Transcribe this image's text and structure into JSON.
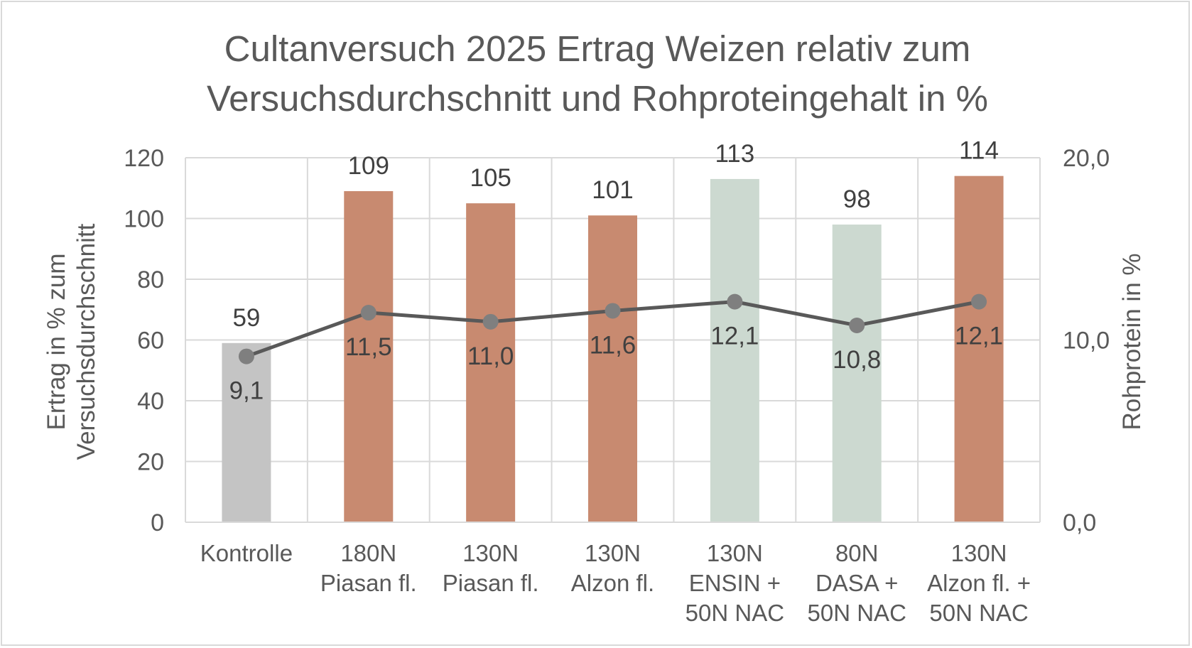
{
  "chart_data": {
    "type": "bar",
    "title_lines": [
      "Cultanversuch 2025 Ertrag Weizen relativ zum",
      "Versuchsdurchschnitt und Rohproteingehalt in %"
    ],
    "categories": [
      [
        "Kontrolle"
      ],
      [
        "180N",
        "Piasan fl."
      ],
      [
        "130N",
        "Piasan fl."
      ],
      [
        "130N",
        "Alzon fl."
      ],
      [
        "130N",
        "ENSIN +",
        "50N NAC"
      ],
      [
        "80N",
        "DASA +",
        "50N NAC"
      ],
      [
        "130N",
        "Alzon fl. +",
        "50N NAC"
      ]
    ],
    "series": [
      {
        "type": "bar",
        "axis": "primary",
        "values": [
          59,
          109,
          105,
          101,
          113,
          98,
          114
        ],
        "value_labels": [
          "59",
          "109",
          "105",
          "101",
          "113",
          "98",
          "114"
        ],
        "colors": [
          "#c4c4c4",
          "#c88a70",
          "#c88a70",
          "#c88a70",
          "#ccd9d0",
          "#ccd9d0",
          "#c88a70"
        ]
      },
      {
        "type": "line",
        "axis": "secondary",
        "values": [
          9.1,
          11.5,
          11.0,
          11.6,
          12.1,
          10.8,
          12.1
        ],
        "value_labels": [
          "9,1",
          "11,5",
          "11,0",
          "11,6",
          "12,1",
          "10,8",
          "12,1"
        ],
        "color": "#595959",
        "marker_color": "#7f7f7f"
      }
    ],
    "ylabel_lines": [
      "Ertrag in % zum",
      "Versuchsdurchschnitt"
    ],
    "y2label": "Rohprotein in %",
    "ylim": [
      0,
      120
    ],
    "yticks": [
      0,
      20,
      40,
      60,
      80,
      100,
      120
    ],
    "ytick_labels": [
      "0",
      "20",
      "40",
      "60",
      "80",
      "100",
      "120"
    ],
    "y2lim": [
      0,
      20
    ],
    "y2ticks": [
      0,
      10,
      20
    ],
    "y2tick_labels": [
      "0,0",
      "10,0",
      "20,0"
    ],
    "grid": true,
    "legend": "none"
  }
}
